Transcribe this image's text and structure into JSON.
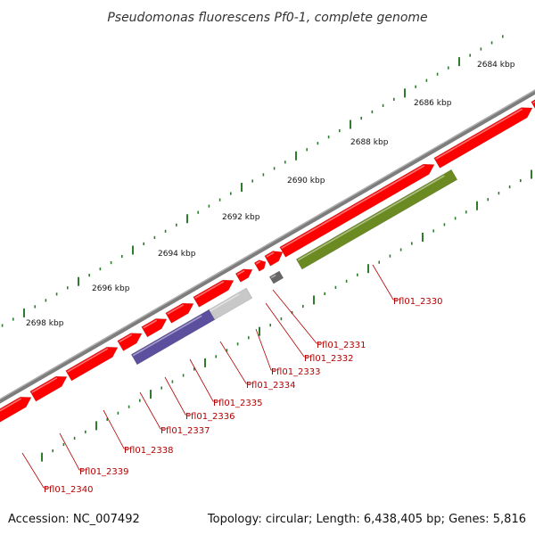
{
  "header": {
    "title": "Pseudomonas fluorescens Pf0-1, complete genome"
  },
  "footer": {
    "accession": "Accession: NC_007492",
    "summary": "Topology: circular; Length: 6,438,405 bp; Genes: 5,816"
  },
  "colors": {
    "forward_gene": "#ff0000",
    "reverse_gene_purple": "#5c509e",
    "reverse_gene_olive": "#6b8a22",
    "reverse_gene_light": "#c8c8c8",
    "reverse_gene_dark": "#666666",
    "backbone": "#7d7d7d",
    "tick": "#2e7d2e",
    "label": "#b40000"
  },
  "kbp_labels": [
    "2684 kbp",
    "2686 kbp",
    "2688 kbp",
    "2690 kbp",
    "2692 kbp",
    "2694 kbp",
    "2696 kbp",
    "2698 kbp"
  ],
  "gene_labels": [
    "Pfl01_2330",
    "Pfl01_2331",
    "Pfl01_2332",
    "Pfl01_2333",
    "Pfl01_2334",
    "Pfl01_2335",
    "Pfl01_2336",
    "Pfl01_2337",
    "Pfl01_2338",
    "Pfl01_2339",
    "Pfl01_2340"
  ]
}
